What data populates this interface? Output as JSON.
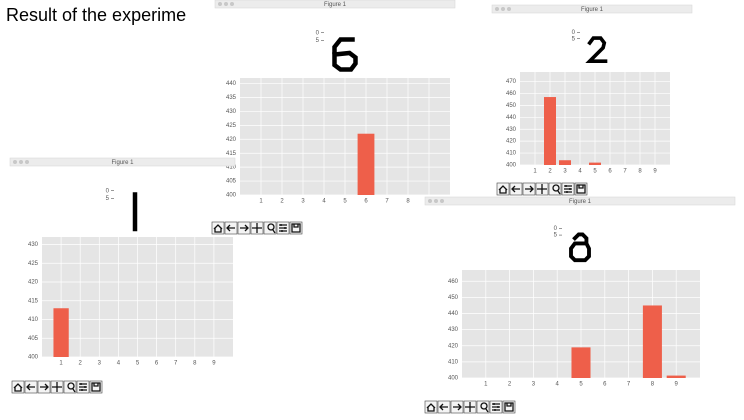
{
  "title": "Result of the experime",
  "chart_data": [
    {
      "type": "bar",
      "window_title": "Figure 1",
      "image_yticks": [
        0,
        5
      ],
      "color": "#ee5f4a",
      "grid": true,
      "categories": [
        1,
        2,
        3,
        4,
        5,
        6,
        7,
        8,
        9
      ],
      "values": [
        400,
        400,
        400,
        400,
        400,
        422,
        400,
        400,
        400
      ],
      "xlim": [
        0,
        10
      ],
      "xticks": [
        1,
        2,
        3,
        4,
        5,
        6,
        7,
        8,
        9
      ],
      "ylim": [
        400,
        442
      ],
      "yticks": [
        400,
        405,
        410,
        415,
        420,
        425,
        430,
        435,
        440
      ]
    },
    {
      "type": "bar",
      "window_title": "Figure 1",
      "image_yticks": [
        0,
        5
      ],
      "color": "#ee5f4a",
      "grid": true,
      "categories": [
        1,
        2,
        3,
        4,
        5,
        6,
        7,
        8,
        9
      ],
      "values": [
        400,
        457,
        404,
        400,
        402,
        400,
        400,
        400,
        400
      ],
      "xlim": [
        0,
        10
      ],
      "xticks": [
        1,
        2,
        3,
        4,
        5,
        6,
        7,
        8,
        9
      ],
      "ylim": [
        400,
        478
      ],
      "yticks": [
        400,
        410,
        420,
        430,
        440,
        450,
        460,
        470
      ]
    },
    {
      "type": "bar",
      "window_title": "Figure 1",
      "image_yticks": [
        0,
        5
      ],
      "color": "#ee5f4a",
      "grid": true,
      "categories": [
        1,
        2,
        3,
        4,
        5,
        6,
        7,
        8,
        9
      ],
      "values": [
        413,
        400,
        400,
        400,
        400,
        400,
        400,
        400,
        400
      ],
      "xlim": [
        0,
        10
      ],
      "xticks": [
        1,
        2,
        3,
        4,
        5,
        6,
        7,
        8,
        9
      ],
      "ylim": [
        400,
        432
      ],
      "yticks": [
        400,
        405,
        410,
        415,
        420,
        425,
        430
      ]
    },
    {
      "type": "bar",
      "window_title": "Figure 1",
      "image_yticks": [
        0,
        5
      ],
      "color": "#ee5f4a",
      "grid": true,
      "categories": [
        1,
        2,
        3,
        4,
        5,
        6,
        7,
        8,
        9
      ],
      "values": [
        400,
        400,
        400,
        400,
        419,
        400,
        400,
        445,
        401.5
      ],
      "xlim": [
        0,
        10
      ],
      "xticks": [
        1,
        2,
        3,
        4,
        5,
        6,
        7,
        8,
        9
      ],
      "ylim": [
        400,
        467
      ],
      "yticks": [
        400,
        410,
        420,
        430,
        440,
        450,
        460
      ]
    }
  ]
}
